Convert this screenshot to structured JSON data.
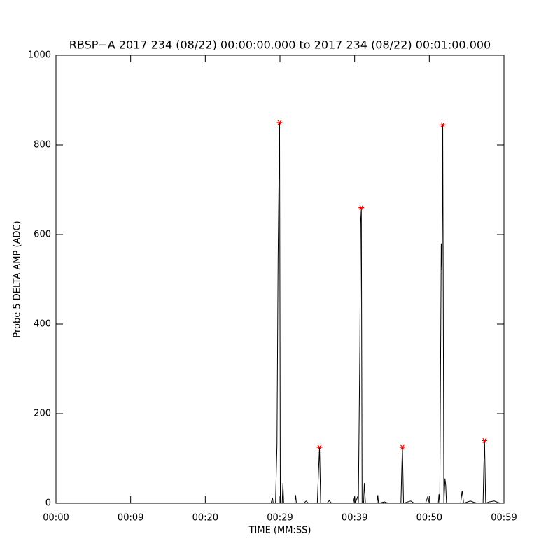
{
  "chart_data": {
    "type": "line",
    "title": "RBSP−A 2017 234 (08/22) 00:00:00.000 to 2017 234 (08/22) 00:01:00.000",
    "xlabel": "TIME (MM:SS)",
    "ylabel": "Probe 5 DELTA AMP (ADC)",
    "xlim": [
      0,
      60
    ],
    "ylim": [
      0,
      1000
    ],
    "xticks": [
      {
        "value": 0,
        "label": "00:00"
      },
      {
        "value": 10,
        "label": "00:09"
      },
      {
        "value": 20,
        "label": "00:20"
      },
      {
        "value": 30,
        "label": "00:29"
      },
      {
        "value": 40,
        "label": "00:39"
      },
      {
        "value": 50,
        "label": "00:50"
      },
      {
        "value": 60,
        "label": "00:59"
      }
    ],
    "yticks": [
      0,
      200,
      400,
      600,
      800,
      1000
    ],
    "series": [
      {
        "style": "line",
        "color": "#000000",
        "x": [
          0,
          28.8,
          29.0,
          29.1,
          29.4,
          29.6,
          29.75,
          29.95,
          30.05,
          30.3,
          30.4,
          30.5,
          32.0,
          32.1,
          32.2,
          33.2,
          33.5,
          33.8,
          35.0,
          35.15,
          35.3,
          35.45,
          36.3,
          36.6,
          36.9,
          39.8,
          40.0,
          40.1,
          40.4,
          40.5,
          40.7,
          40.8,
          40.9,
          41.0,
          41.2,
          41.3,
          41.45,
          43.0,
          43.1,
          43.2,
          44.0,
          44.5,
          46.2,
          46.35,
          46.4,
          46.55,
          47.5,
          48.0,
          49.5,
          49.8,
          50.0,
          51.2,
          51.3,
          51.4,
          51.6,
          51.7,
          51.8,
          51.95,
          52.1,
          52.2,
          52.3,
          54.2,
          54.4,
          54.6,
          55.5,
          56.0,
          56.5,
          57.2,
          57.3,
          57.4,
          57.55,
          58.0,
          58.7,
          59.5,
          60
        ],
        "values": [
          0,
          0,
          12,
          0,
          0,
          130,
          550,
          850,
          0,
          0,
          45,
          0,
          0,
          18,
          0,
          0,
          5,
          0,
          0,
          65,
          125,
          0,
          0,
          6,
          0,
          0,
          15,
          0,
          15,
          0,
          350,
          625,
          660,
          0,
          0,
          45,
          0,
          0,
          18,
          0,
          3,
          0,
          0,
          100,
          125,
          0,
          5,
          0,
          0,
          15,
          0,
          0,
          20,
          0,
          580,
          520,
          845,
          0,
          55,
          40,
          0,
          0,
          28,
          0,
          5,
          2,
          0,
          0,
          80,
          140,
          0,
          3,
          5,
          0,
          0
        ]
      },
      {
        "style": "star",
        "color": "#ff0000",
        "x": [
          29.95,
          35.3,
          40.9,
          46.4,
          51.8,
          57.4
        ],
        "values": [
          850,
          125,
          660,
          125,
          845,
          140
        ]
      }
    ]
  }
}
